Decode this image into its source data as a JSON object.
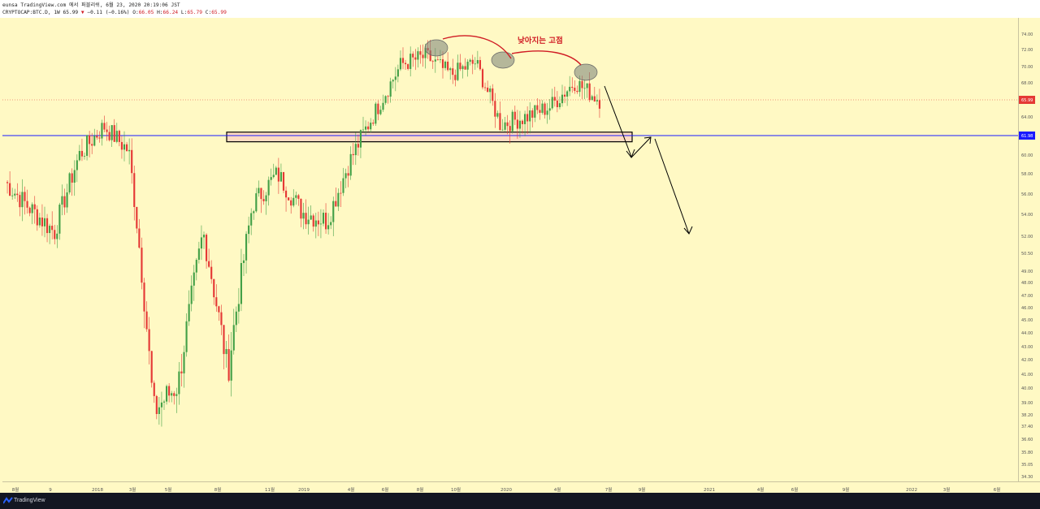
{
  "header": {
    "line1": "eunsa TradingView.com 에서 퍼블리쉬, 6월 23, 2020 20:19:06 JST",
    "symbol": "CRYPTOCAP:BTC.D, 1W",
    "last": "65.99",
    "change": "−0.11 (−0.16%)",
    "o_label": "O:",
    "o": "66.05",
    "h_label": "H:",
    "h": "66.24",
    "l_label": "L:",
    "l": "65.79",
    "c_label": "C:",
    "c": "65.99"
  },
  "footer": {
    "brand": "TradingView"
  },
  "colors": {
    "background": "#fff9c4",
    "up": "#43a047",
    "down": "#e53935",
    "support_line": "#1a1aff",
    "annotation": "#d01c24",
    "price_tag": "#e53935",
    "support_tag": "#1a1aff"
  },
  "chart_data": {
    "type": "candlestick",
    "title": "",
    "annotation": "낮아지는 고점",
    "price_axis": {
      "ticks": [
        "74.00",
        "72.00",
        "70.00",
        "68.00",
        "65.99",
        "64.00",
        "61.98",
        "60.00",
        "58.00",
        "56.00",
        "54.00",
        "52.00",
        "50.50",
        "49.00",
        "48.00",
        "47.00",
        "46.00",
        "45.00",
        "44.00",
        "43.00",
        "42.00",
        "41.00",
        "40.00",
        "39.00",
        "38.20",
        "37.40",
        "36.60",
        "35.80",
        "35.05",
        "34.30"
      ],
      "current_price": 65.99,
      "support_price": 61.98,
      "range": [
        34.0,
        75.2
      ]
    },
    "time_axis": [
      "8월",
      "9",
      "2018",
      "3월",
      "5월",
      "8월",
      "11월",
      "2019",
      "4월",
      "6월",
      "8월",
      "10월",
      "2020",
      "4월",
      "7월",
      "9월",
      "2021",
      "4월",
      "6월",
      "9월",
      "2022",
      "3월",
      "6월"
    ],
    "weekly_closes_sample": [
      57.2,
      54.6,
      52.4,
      60.0,
      63.0,
      60.4,
      38.4,
      40.3,
      52.4,
      41.1,
      55.0,
      58.0,
      54.2,
      53.4,
      59.8,
      64.9,
      70.3,
      71.2,
      69.0,
      70.5,
      63.2,
      64.0,
      65.2,
      68.1,
      65.99
    ],
    "projection": [
      61.98,
      59.8,
      61.98,
      52.0
    ]
  }
}
